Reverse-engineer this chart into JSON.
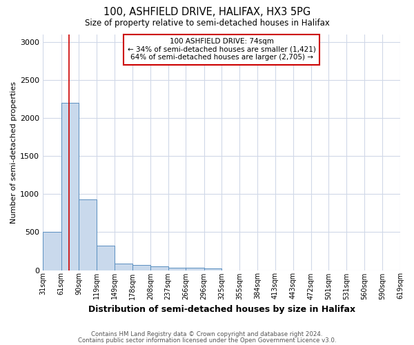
{
  "title": "100, ASHFIELD DRIVE, HALIFAX, HX3 5PG",
  "subtitle": "Size of property relative to semi-detached houses in Halifax",
  "xlabel": "Distribution of semi-detached houses by size in Halifax",
  "ylabel": "Number of semi-detached properties",
  "footnote1": "Contains HM Land Registry data © Crown copyright and database right 2024.",
  "footnote2": "Contains public sector information licensed under the Open Government Licence v3.0.",
  "annotation_line1": "100 ASHFIELD DRIVE: 74sqm",
  "annotation_line2": "← 34% of semi-detached houses are smaller (1,421)",
  "annotation_line3": "64% of semi-detached houses are larger (2,705) →",
  "bar_color": "#c9d9ec",
  "bar_edge_color": "#5a8fc0",
  "red_line_color": "#cc0000",
  "annotation_box_color": "#cc0000",
  "grid_color": "#d0d8e8",
  "background_color": "#ffffff",
  "bins": [
    "31sqm",
    "61sqm",
    "90sqm",
    "119sqm",
    "149sqm",
    "178sqm",
    "208sqm",
    "237sqm",
    "266sqm",
    "296sqm",
    "325sqm",
    "355sqm",
    "384sqm",
    "413sqm",
    "443sqm",
    "472sqm",
    "501sqm",
    "531sqm",
    "560sqm",
    "590sqm",
    "619sqm"
  ],
  "bin_edges": [
    31,
    61,
    90,
    119,
    149,
    178,
    208,
    237,
    266,
    296,
    325,
    355,
    384,
    413,
    443,
    472,
    501,
    531,
    560,
    590,
    619
  ],
  "bar_heights": [
    500,
    2200,
    930,
    320,
    90,
    70,
    50,
    35,
    30,
    25,
    0,
    0,
    0,
    0,
    0,
    0,
    0,
    0,
    0,
    0
  ],
  "property_size": 74,
  "ylim": [
    0,
    3100
  ],
  "yticks": [
    0,
    500,
    1000,
    1500,
    2000,
    2500,
    3000
  ]
}
